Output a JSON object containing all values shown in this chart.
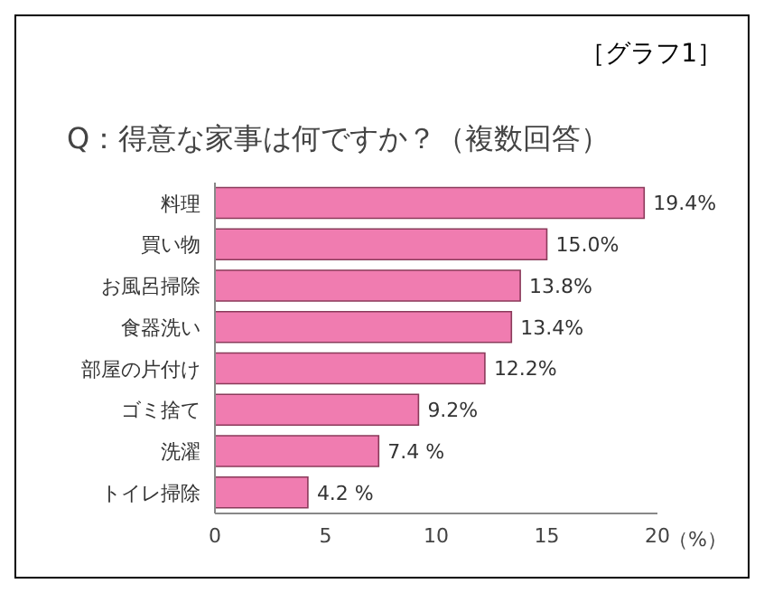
{
  "chart_data": {
    "type": "bar",
    "orientation": "horizontal",
    "title": "Q：得意な家事は何ですか？（複数回答）",
    "annotations": [
      "［グラフ1］"
    ],
    "xlabel": "（%）",
    "categories": [
      "料理",
      "買い物",
      "お風呂掃除",
      "食器洗い",
      "部屋の片付け",
      "ゴミ捨て",
      "洗濯",
      "トイレ掃除"
    ],
    "values": [
      19.4,
      15.0,
      13.8,
      13.4,
      12.2,
      9.2,
      7.4,
      4.2
    ],
    "value_labels": [
      "19.4%",
      "15.0%",
      "13.8%",
      "13.4%",
      "12.2%",
      "9.2%",
      "7.4 %",
      "4.2 %"
    ],
    "color": "#f07cb0",
    "xlim": [
      0,
      20
    ],
    "xticks": [
      0,
      5,
      10,
      15,
      20
    ],
    "grid": false
  }
}
